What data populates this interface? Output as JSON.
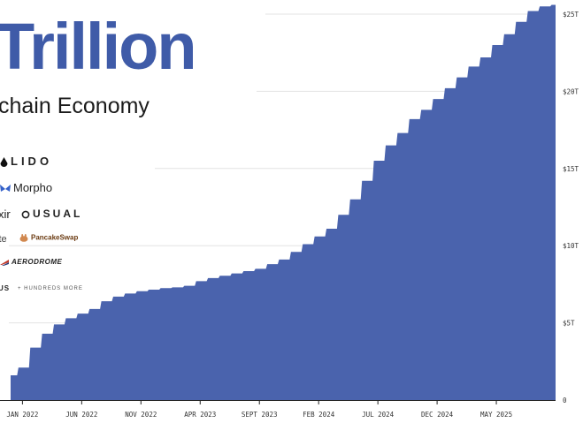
{
  "headline": {
    "title": "Trillion",
    "subtitle": "chain Economy"
  },
  "brands": {
    "lido": "LIDO",
    "morpho": "Morpho",
    "axir": "xir",
    "usual": "USUAL",
    "ite": "ite",
    "pancakeswap": "PancakeSwap",
    "aerodrome": "AERODROME",
    "us": "US",
    "more": "+ HUNDREDS MORE"
  },
  "colors": {
    "area": "#4a63ad",
    "grid": "#e3e3e3",
    "title": "#3f5ba8"
  },
  "chart_data": {
    "type": "area",
    "xlabel": "",
    "ylabel": "",
    "x_ticks": [
      "JAN 2022",
      "JUN 2022",
      "NOV 2022",
      "APR 2023",
      "SEPT 2023",
      "FEB 2024",
      "JUL 2024",
      "DEC 2024",
      "MAY 2025"
    ],
    "y_ticks": [
      "0",
      "$5T",
      "$10T",
      "$15T",
      "$20T",
      "$25T"
    ],
    "ylim": [
      0,
      25
    ],
    "y_axis_position": "right",
    "grid": true,
    "series": [
      {
        "x": [
          "2021-12",
          "2022-01",
          "2022-02",
          "2022-03",
          "2022-04",
          "2022-05",
          "2022-06",
          "2022-07",
          "2022-08",
          "2022-09",
          "2022-10",
          "2022-11",
          "2022-12",
          "2023-01",
          "2023-02",
          "2023-03",
          "2023-04",
          "2023-05",
          "2023-06",
          "2023-07",
          "2023-08",
          "2023-09",
          "2023-10",
          "2023-11",
          "2023-12",
          "2024-01",
          "2024-02",
          "2024-03",
          "2024-04",
          "2024-05",
          "2024-06",
          "2024-07",
          "2024-08",
          "2024-09",
          "2024-10",
          "2024-11",
          "2024-12",
          "2025-01",
          "2025-02",
          "2025-03",
          "2025-04",
          "2025-05",
          "2025-06",
          "2025-07",
          "2025-08",
          "2025-09",
          "2025-10"
        ],
        "values": [
          1.6,
          2.1,
          3.4,
          4.3,
          4.9,
          5.3,
          5.6,
          5.9,
          6.4,
          6.7,
          6.9,
          7.05,
          7.15,
          7.25,
          7.3,
          7.4,
          7.7,
          7.9,
          8.05,
          8.2,
          8.35,
          8.5,
          8.8,
          9.1,
          9.6,
          10.1,
          10.6,
          11.1,
          12.0,
          13.0,
          14.2,
          15.5,
          16.5,
          17.3,
          18.2,
          18.8,
          19.5,
          20.2,
          20.9,
          21.6,
          22.2,
          23.0,
          23.7,
          24.5,
          25.2,
          25.5,
          25.6
        ]
      }
    ]
  }
}
